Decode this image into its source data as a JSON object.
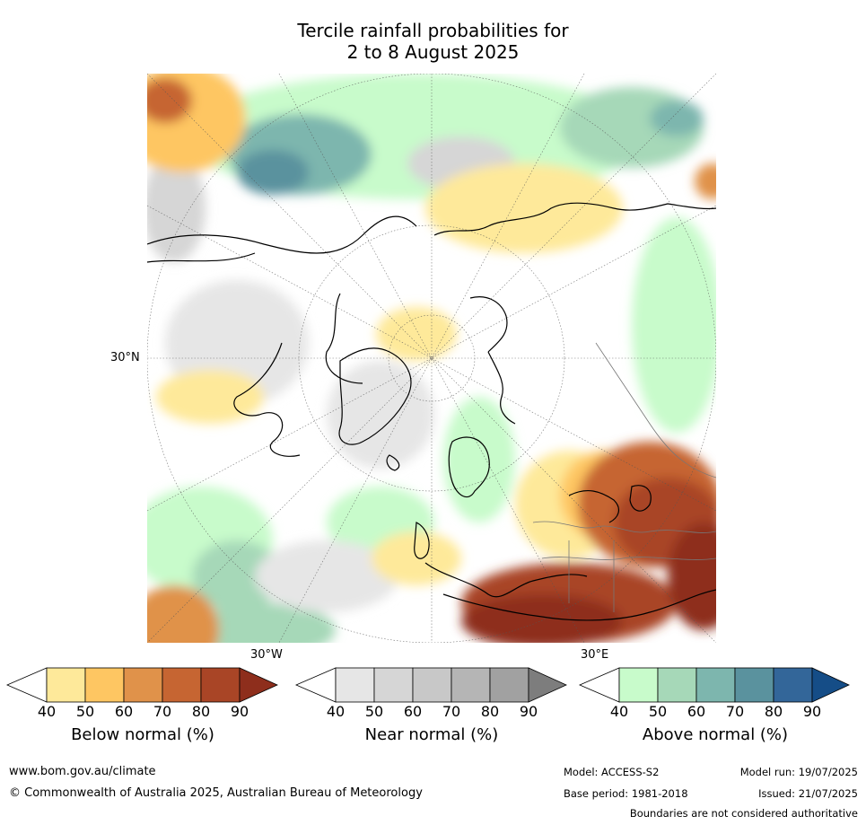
{
  "title": {
    "line1": "Tercile rainfall probabilities for",
    "line2": "2 to 8 August 2025"
  },
  "map": {
    "projection": "north-polar-stereographic",
    "lat_labels": [
      "30°N"
    ],
    "lon_labels": [
      "30°W",
      "30°E"
    ]
  },
  "colorbars": [
    {
      "title": "Below normal (%)",
      "ticks": [
        "40",
        "50",
        "60",
        "70",
        "80",
        "90"
      ],
      "colors": [
        "#ffffff",
        "#fee99a",
        "#fec662",
        "#e0924a",
        "#c66532",
        "#a94526",
        "#8e2e1c"
      ]
    },
    {
      "title": "Near normal (%)",
      "ticks": [
        "40",
        "50",
        "60",
        "70",
        "80",
        "90"
      ],
      "colors": [
        "#ffffff",
        "#e6e6e6",
        "#d6d6d6",
        "#c8c8c8",
        "#b5b5b5",
        "#a1a1a1",
        "#7d7d7d"
      ]
    },
    {
      "title": "Above normal (%)",
      "ticks": [
        "40",
        "50",
        "60",
        "70",
        "80",
        "90"
      ],
      "colors": [
        "#ffffff",
        "#c8fbcb",
        "#a6d8b8",
        "#7db6ae",
        "#5a929e",
        "#336699",
        "#154d87"
      ]
    }
  ],
  "footer": {
    "website": "www.bom.gov.au/climate",
    "copyright": "© Commonwealth of Australia 2025, Australian Bureau of Meteorology",
    "model": "Model: ACCESS-S2",
    "base_period": "Base period: 1981-2018",
    "model_run": "Model run: 19/07/2025",
    "issued": "Issued: 21/07/2025",
    "disclaimer": "Boundaries are not considered authoritative"
  }
}
